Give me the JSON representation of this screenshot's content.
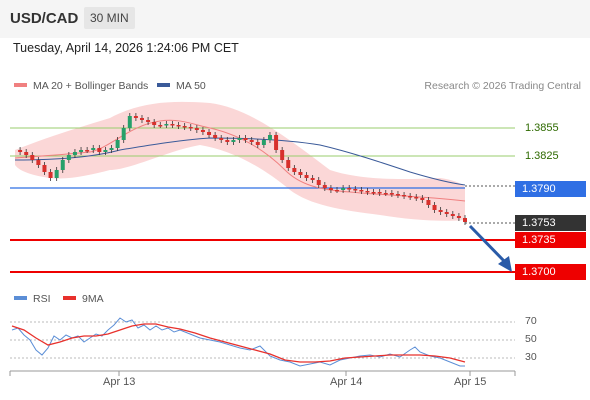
{
  "header": {
    "symbol": "USD/CAD",
    "timeframe": "30 MIN"
  },
  "datetime": "Tuesday, April 14, 2026 1:24:06 PM CET",
  "legend": {
    "items": [
      {
        "label": "MA 20 + Bollinger Bands",
        "color": "#f08080"
      },
      {
        "label": "MA 50",
        "color": "#3a5a99"
      }
    ],
    "credit": "Research © 2026 Trading Central"
  },
  "levels": {
    "r2": "1.3855",
    "r1": "1.3825",
    "pivot": "1.3790",
    "last": "1.3753",
    "s1": "1.3735",
    "s2": "1.3700"
  },
  "colors": {
    "resistance": "#9acd6e",
    "pivot": "#2f6fe4",
    "support": "#ee0000",
    "last": "#333333",
    "up": "#26a06a",
    "down": "#d7302c"
  },
  "rsi": {
    "legend": [
      {
        "label": "RSI",
        "color": "#5b8ed6"
      },
      {
        "label": "9MA",
        "color": "#e8312c"
      }
    ],
    "ticks": [
      "70",
      "50",
      "30"
    ]
  },
  "xaxis": {
    "ticks": [
      "Apr 13",
      "Apr 14",
      "Apr 15"
    ]
  }
}
